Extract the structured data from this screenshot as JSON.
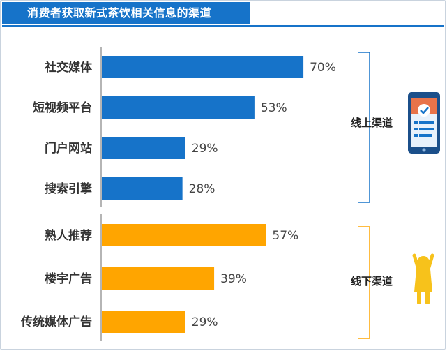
{
  "chart_data": {
    "type": "bar",
    "orientation": "horizontal",
    "title": "消费者获取新式茶饮相关信息的渠道",
    "categories": [
      "社交媒体",
      "短视频平台",
      "门户网站",
      "搜索引擎",
      "熟人推荐",
      "楼宇广告",
      "传统媒体广告"
    ],
    "values": [
      70,
      53,
      29,
      28,
      57,
      39,
      29
    ],
    "value_labels": [
      "70%",
      "53%",
      "29%",
      "28%",
      "57%",
      "39%",
      "29%"
    ],
    "unit": "%",
    "groups": [
      {
        "label": "线上渠道",
        "categories": [
          "社交媒体",
          "短视频平台",
          "门户网站",
          "搜索引擎"
        ],
        "color": "#1673c9",
        "icon": "tablet-checklist-icon"
      },
      {
        "label": "线下渠道",
        "categories": [
          "熟人推荐",
          "楼宇广告",
          "传统媒体广告"
        ],
        "color": "#ffa500",
        "icon": "cheering-person-icon"
      }
    ],
    "grid": false,
    "legend": "none"
  },
  "colors": {
    "online": "#1673c9",
    "offline": "#ffa500",
    "title_bg": "#1673c9",
    "title_text": "#ffffff"
  }
}
